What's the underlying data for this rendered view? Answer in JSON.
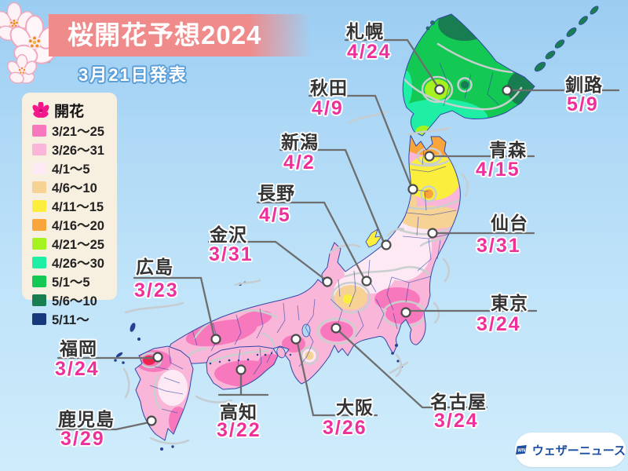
{
  "title": {
    "banner": "桜開花予想2024",
    "announce": "3月21日発表"
  },
  "legend": {
    "header_label": "開花",
    "flower_icon_color": "#F2188C",
    "items": [
      {
        "label": "3/21〜25",
        "color": "#F778BC"
      },
      {
        "label": "3/26〜31",
        "color": "#F9B6D8"
      },
      {
        "label": "4/1〜5",
        "color": "#FDE9F4"
      },
      {
        "label": "4/6〜10",
        "color": "#F7D295"
      },
      {
        "label": "4/11〜15",
        "color": "#FBEE3C"
      },
      {
        "label": "4/16〜20",
        "color": "#FAA43C"
      },
      {
        "label": "4/21〜25",
        "color": "#A5F221"
      },
      {
        "label": "4/26〜30",
        "color": "#1EEFA4"
      },
      {
        "label": "5/1〜5",
        "color": "#13C853"
      },
      {
        "label": "5/6〜10",
        "color": "#197D52"
      },
      {
        "label": "5/11〜",
        "color": "#18387E"
      }
    ]
  },
  "cities": [
    {
      "id": "sapporo",
      "name": "札幌",
      "date": "4/24"
    },
    {
      "id": "kushiro",
      "name": "釧路",
      "date": "5/9"
    },
    {
      "id": "akita",
      "name": "秋田",
      "date": "4/9"
    },
    {
      "id": "aomori",
      "name": "青森",
      "date": "4/15"
    },
    {
      "id": "niigata",
      "name": "新潟",
      "date": "4/2"
    },
    {
      "id": "sendai",
      "name": "仙台",
      "date": "3/31"
    },
    {
      "id": "nagano",
      "name": "長野",
      "date": "4/5"
    },
    {
      "id": "kanazawa",
      "name": "金沢",
      "date": "3/31"
    },
    {
      "id": "tokyo",
      "name": "東京",
      "date": "3/24"
    },
    {
      "id": "hiroshima",
      "name": "広島",
      "date": "3/23"
    },
    {
      "id": "nagoya",
      "name": "名古屋",
      "date": "3/24"
    },
    {
      "id": "osaka",
      "name": "大阪",
      "date": "3/26"
    },
    {
      "id": "kochi",
      "name": "高知",
      "date": "3/22"
    },
    {
      "id": "fukuoka",
      "name": "福岡",
      "date": "3/24"
    },
    {
      "id": "kagoshima",
      "name": "鹿児島",
      "date": "3/29"
    }
  ],
  "logo": {
    "mark": "WN",
    "text": "ウェザーニュース"
  },
  "colors": {
    "date_text": "#F0309A",
    "banner": "#F08B8B",
    "legend_bg": "#F7EFE0",
    "fukuoka_bloomed_spot": "#EE2450"
  }
}
